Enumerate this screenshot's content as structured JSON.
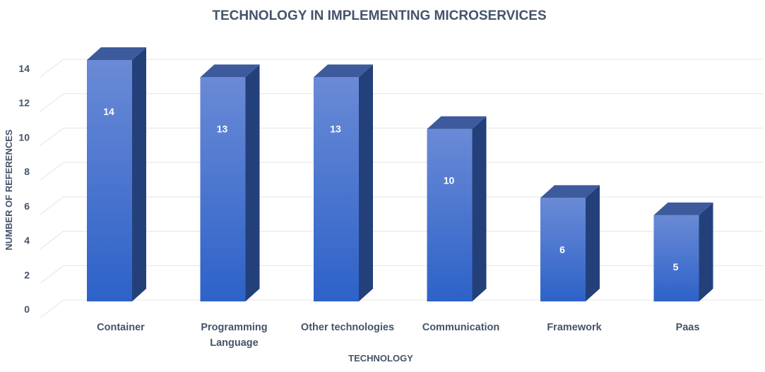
{
  "chart_data": {
    "type": "bar",
    "title": "TECHNOLOGY IN IMPLEMENTING MICROSERVICES",
    "xlabel": "TECHNOLOGY",
    "ylabel": "NUMBER OF REFERENCES",
    "categories": [
      [
        "Container"
      ],
      [
        "Programming",
        "Language"
      ],
      [
        "Other technologies"
      ],
      [
        "Communication"
      ],
      [
        "Framework"
      ],
      [
        "Paas"
      ]
    ],
    "values": [
      14,
      13,
      13,
      10,
      6,
      5
    ],
    "ylim": [
      0,
      14
    ],
    "yticks": [
      0,
      2,
      4,
      6,
      8,
      10,
      12,
      14
    ],
    "grid": true,
    "style": "3d-column",
    "colors": {
      "bar_top": "#6a8ad6",
      "bar_bottom": "#2d62c8",
      "bar_side": "#24407a",
      "bar_cap": "#3c5a9c",
      "grid": "#e4e4e4",
      "text": "#44546a"
    }
  }
}
